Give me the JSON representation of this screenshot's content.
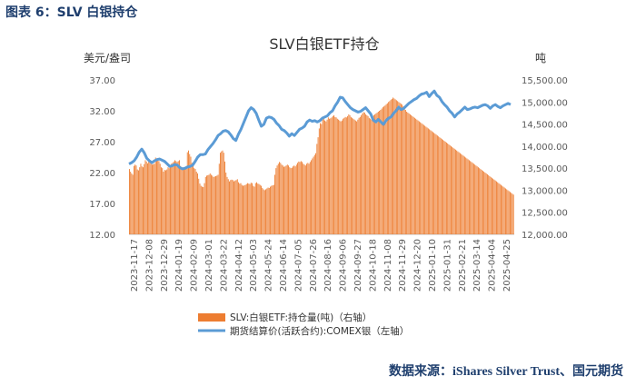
{
  "figure_caption": "图表 6：SLV 白银持仓",
  "source_note": "数据来源：iShares Silver Trust、国元期货",
  "colors": {
    "bar": "#ED7D31",
    "line": "#5B9BD5",
    "caption": "#1F3F6E"
  },
  "chart_data": {
    "type": "bar+line",
    "title": "SLV白银ETF持仓",
    "left_axis": {
      "unit": "美元/盎司",
      "ylim": [
        12,
        37
      ],
      "ticks": [
        "12.00",
        "17.00",
        "22.00",
        "27.00",
        "32.00",
        "37.00"
      ]
    },
    "right_axis": {
      "unit": "吨",
      "ylim": [
        12000,
        15500
      ],
      "ticks": [
        "12,000.00",
        "12,500.00",
        "13,000.00",
        "13,500.00",
        "14,000.00",
        "14,500.00",
        "15,000.00",
        "15,500.00"
      ]
    },
    "x_tick_labels": [
      "2023-11-17",
      "2023-12-08",
      "2023-12-29",
      "2024-01-19",
      "2024-02-09",
      "2024-03-01",
      "2024-03-22",
      "2024-04-12",
      "2024-05-03",
      "2024-05-24",
      "2024-06-14",
      "2024-07-05",
      "2024-07-26",
      "2024-08-16",
      "2024-09-06",
      "2024-09-27",
      "2024-10-18",
      "2024-11-08",
      "2024-11-29",
      "2024-12-20",
      "2025-01-10",
      "2025-01-31",
      "2025-02-21",
      "2025-03-14",
      "2025-04-04",
      "2025-04-25"
    ],
    "grid": false,
    "legend_position": "bottom",
    "series": [
      {
        "name": "SLV:白银ETF:持仓量(吨)（右轴）",
        "type": "bar",
        "axis": "right",
        "values": [
          13480,
          13420,
          13380,
          13350,
          13550,
          13580,
          13560,
          13470,
          13450,
          13520,
          13600,
          13540,
          13520,
          13590,
          13680,
          13650,
          13610,
          13650,
          13630,
          13600,
          13580,
          13590,
          13600,
          13740,
          13720,
          13690,
          13660,
          13600,
          13520,
          13500,
          13420,
          13460,
          13450,
          13470,
          13520,
          13500,
          13520,
          13600,
          13620,
          13650,
          13680,
          13660,
          13640,
          13660,
          13680,
          13550,
          13520,
          13500,
          13480,
          13500,
          13510,
          13860,
          13900,
          13820,
          13760,
          13620,
          13560,
          13500,
          13480,
          13420,
          13380,
          13260,
          13150,
          13100,
          13080,
          13070,
          13160,
          13300,
          13330,
          13340,
          13350,
          13380,
          13350,
          13330,
          13300,
          13310,
          13320,
          13330,
          13350,
          13600,
          13850,
          13880,
          13900,
          13850,
          13650,
          13400,
          13300,
          13250,
          13200,
          13230,
          13240,
          13230,
          13200,
          13220,
          13230,
          13250,
          13180,
          13150,
          13160,
          13120,
          13100,
          13110,
          13120,
          13140,
          13160,
          13150,
          13140,
          13170,
          13160,
          13100,
          13080,
          13160,
          13180,
          13150,
          13140,
          13120,
          13100,
          13050,
          13020,
          13000,
          13020,
          13040,
          13060,
          13050,
          13080,
          13100,
          13110,
          13120,
          13350,
          13500,
          13560,
          13600,
          13640,
          13620,
          13580,
          13560,
          13530,
          13540,
          13560,
          13580,
          13560,
          13520,
          13500,
          13510,
          13540,
          13560,
          13540,
          13580,
          13620,
          13650,
          13640,
          13660,
          13640,
          13600,
          13580,
          13560,
          13600,
          13620,
          13600,
          13640,
          13680,
          13720,
          13760,
          13800,
          13840,
          14050,
          14200,
          14400,
          14520,
          14500,
          14600,
          14620,
          14580,
          14560,
          14600,
          14650,
          14620,
          14630,
          14650,
          14680,
          14700,
          14660,
          14650,
          14620,
          14600,
          14580,
          14560,
          14580,
          14620,
          14640,
          14660,
          14650,
          14680,
          14720,
          14700,
          14660,
          14640,
          14620,
          14600,
          14580,
          14560,
          14600,
          14640,
          14660,
          14700,
          14740,
          14770,
          14760,
          14720,
          14700,
          14680,
          14640,
          14620,
          14600,
          14660,
          14700,
          14720,
          14740,
          14760,
          14780,
          14800,
          14820,
          14850,
          14880,
          14900,
          14920,
          14950,
          14970,
          15000,
          15020,
          15050,
          15070,
          15100,
          15080,
          15060,
          15040,
          15020,
          15000,
          14980,
          14960,
          14940,
          14900,
          14860,
          14820,
          14780,
          14760,
          14740,
          14720,
          14700,
          14680,
          14660,
          14640,
          14620,
          14600,
          14580,
          14560,
          14540,
          14520,
          14500,
          14480,
          14460,
          14440,
          14420,
          14400,
          14380,
          14360,
          14340,
          14320,
          14300,
          14280,
          14260,
          14240,
          14220,
          14200,
          14180,
          14160,
          14140,
          14120,
          14100,
          14080,
          14060,
          14040,
          14020,
          14000,
          13980,
          13960,
          13940,
          13920,
          13900,
          13880,
          13860,
          13840,
          13820,
          13800,
          13780,
          13760,
          13740,
          13720,
          13700,
          13680,
          13660,
          13640,
          13620,
          13600,
          13580,
          13560,
          13540,
          13520,
          13500,
          13480,
          13460,
          13440,
          13420,
          13400,
          13380,
          13360,
          13340,
          13320,
          13300,
          13280,
          13260,
          13240,
          13220,
          13200,
          13180,
          13160,
          13140,
          13120,
          13100,
          13080,
          13060,
          13040,
          13020,
          13000,
          12980,
          12960,
          12940,
          12920,
          12900
        ]
      },
      {
        "name": "期货结算价(活跃合约):COMEX银（左轴）",
        "type": "line",
        "axis": "left",
        "values": [
          23.4,
          23.6,
          23.9,
          24.5,
          25.3,
          25.8,
          25.2,
          24.3,
          23.9,
          23.6,
          23.9,
          24.1,
          24.2,
          24.0,
          23.8,
          23.4,
          23.0,
          23.1,
          23.3,
          23.2,
          22.8,
          22.6,
          22.7,
          22.9,
          23.0,
          23.2,
          23.8,
          24.5,
          24.9,
          24.9,
          25.0,
          25.7,
          26.2,
          26.7,
          27.3,
          28.0,
          28.3,
          28.7,
          28.8,
          28.6,
          28.1,
          27.5,
          27.2,
          28.2,
          29.0,
          30.0,
          31.0,
          32.0,
          32.5,
          32.2,
          31.6,
          30.5,
          29.5,
          29.8,
          30.8,
          31.0,
          30.9,
          30.6,
          30.0,
          29.6,
          29.0,
          28.8,
          28.4,
          27.9,
          28.3,
          28.0,
          28.5,
          29.0,
          29.2,
          29.5,
          30.2,
          30.5,
          30.3,
          30.4,
          30.2,
          30.4,
          30.8,
          31.0,
          31.2,
          31.7,
          32.0,
          32.8,
          33.4,
          34.2,
          34.1,
          33.5,
          33.0,
          32.5,
          32.2,
          32.0,
          31.8,
          31.9,
          32.2,
          32.5,
          32.0,
          31.5,
          30.5,
          30.2,
          30.6,
          30.2,
          29.8,
          30.4,
          30.8,
          31.0,
          31.6,
          32.0,
          32.6,
          32.2,
          32.4,
          32.8,
          33.2,
          33.5,
          33.8,
          34.0,
          34.4,
          34.7,
          34.8,
          35.0,
          34.3,
          34.8,
          35.2,
          34.5,
          34.2,
          33.5,
          33.0,
          32.6,
          32.0,
          31.6,
          31.0,
          31.5,
          31.8,
          32.2,
          32.6,
          32.2,
          32.3,
          32.5,
          32.6,
          32.5,
          32.7,
          32.9,
          33.0,
          32.8,
          32.4,
          32.8,
          33.0,
          32.7,
          32.5,
          32.8,
          33.0,
          33.2,
          33.0
        ]
      }
    ]
  }
}
